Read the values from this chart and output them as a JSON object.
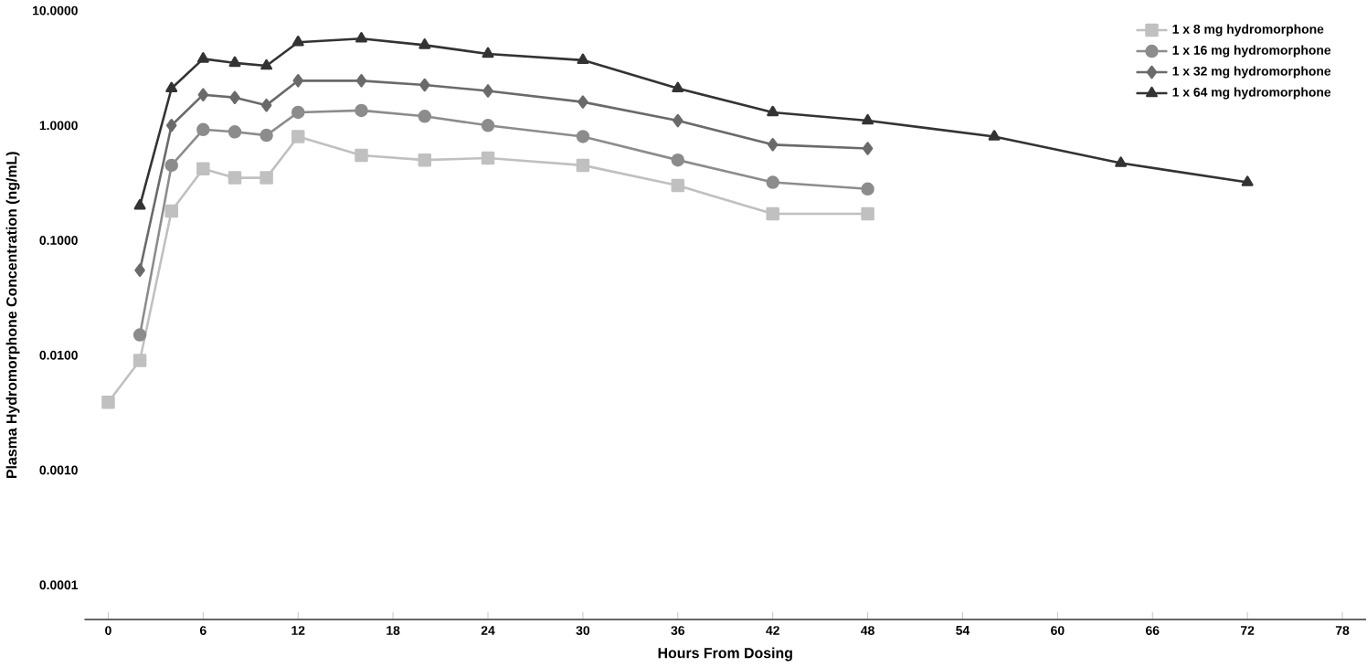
{
  "chart_data": {
    "type": "line",
    "xlabel": "Hours From Dosing",
    "ylabel": "Plasma Hydromorphone Concentration (ng/mL)",
    "log": "y",
    "grid": false,
    "legend": "top right",
    "xlim": [
      -1.5,
      79.5
    ],
    "xticks": [
      0,
      6,
      12,
      18,
      24,
      30,
      36,
      42,
      48,
      54,
      60,
      66,
      72,
      78
    ],
    "ylim": [
      5e-05,
      10
    ],
    "yticks": [
      {
        "value": 0.0001,
        "label": "0.0001"
      },
      {
        "value": 0.001,
        "label": "0.0010"
      },
      {
        "value": 0.01,
        "label": "0.0100"
      },
      {
        "value": 0.1,
        "label": "0.1000"
      },
      {
        "value": 1,
        "label": "1.0000"
      },
      {
        "value": 10,
        "label": "10.0000"
      }
    ],
    "series": [
      {
        "name": "1 x 8 mg hydromorphone",
        "color": "#c0c0c0",
        "marker": "square",
        "x": [
          0,
          2,
          4,
          6,
          8,
          10,
          12,
          16,
          20,
          24,
          30,
          36,
          42,
          48
        ],
        "values": [
          0.0039,
          0.009,
          0.18,
          0.42,
          0.35,
          0.35,
          0.8,
          0.55,
          0.5,
          0.52,
          0.45,
          0.3,
          0.17,
          0.17
        ]
      },
      {
        "name": "1 x 16 mg hydromorphone",
        "color": "#8c8c8c",
        "marker": "circle",
        "x": [
          2,
          4,
          6,
          8,
          10,
          12,
          16,
          20,
          24,
          30,
          36,
          42,
          48
        ],
        "values": [
          0.015,
          0.45,
          0.92,
          0.88,
          0.82,
          1.3,
          1.35,
          1.2,
          1.0,
          0.8,
          0.5,
          0.32,
          0.28
        ]
      },
      {
        "name": "1 x 32 mg hydromorphone",
        "color": "#6a6a6a",
        "marker": "diamond",
        "x": [
          2,
          4,
          6,
          8,
          10,
          12,
          16,
          20,
          24,
          30,
          36,
          42,
          48
        ],
        "values": [
          0.055,
          1.0,
          1.85,
          1.75,
          1.5,
          2.45,
          2.45,
          2.25,
          2.0,
          1.6,
          1.1,
          0.68,
          0.63
        ]
      },
      {
        "name": "1 x 64 mg hydromorphone",
        "color": "#333333",
        "marker": "triangle",
        "x": [
          2,
          4,
          6,
          8,
          10,
          12,
          16,
          20,
          24,
          30,
          36,
          42,
          48,
          56,
          64,
          72
        ],
        "values": [
          0.2,
          2.1,
          3.8,
          3.5,
          3.3,
          5.3,
          5.7,
          5.0,
          4.2,
          3.7,
          2.1,
          1.3,
          1.1,
          0.8,
          0.47,
          0.32
        ]
      }
    ]
  }
}
